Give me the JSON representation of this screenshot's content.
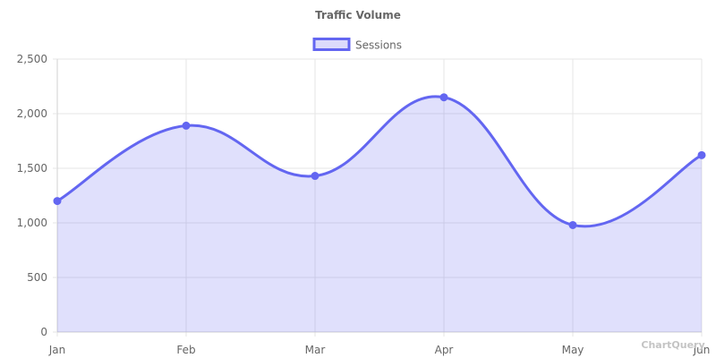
{
  "chart_data": {
    "type": "area",
    "title": "Traffic Volume",
    "categories": [
      "Jan",
      "Feb",
      "Mar",
      "Apr",
      "May",
      "Jun"
    ],
    "series": [
      {
        "name": "Sessions",
        "values": [
          1200,
          1890,
          1430,
          2150,
          980,
          1620
        ]
      }
    ],
    "ylim": [
      0,
      2500
    ],
    "yticks": [
      0,
      500,
      1000,
      1500,
      2000,
      2500
    ],
    "ytick_labels": [
      "0",
      "500",
      "1,000",
      "1,500",
      "2,000",
      "2,500"
    ],
    "grid": true,
    "legend_position": "top-center",
    "line_color": "#6366f1",
    "fill_color": "#6366f133"
  },
  "watermark": "ChartQuery"
}
